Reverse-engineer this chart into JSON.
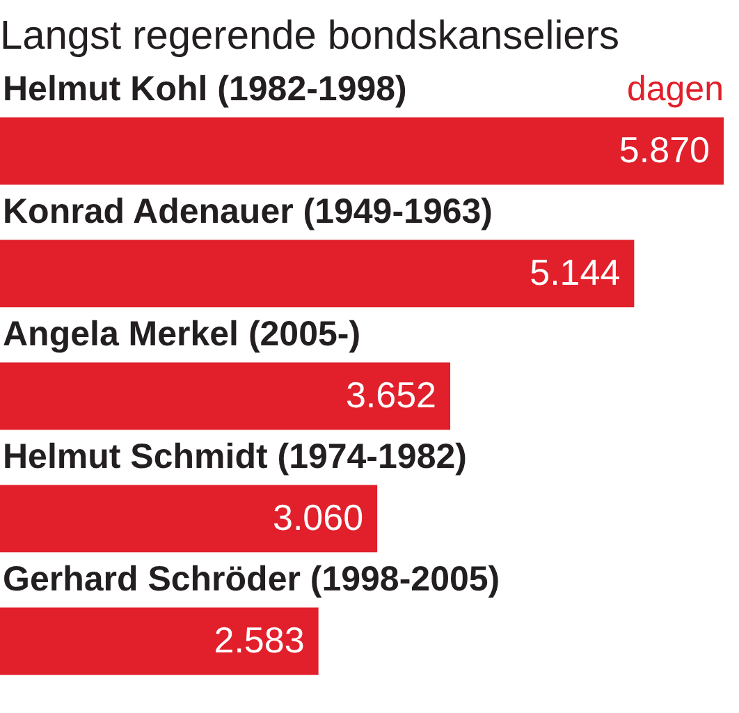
{
  "chart_data": {
    "type": "bar",
    "orientation": "horizontal",
    "title": "Langst regerende bondskanseliers",
    "categories": [
      "Helmut Kohl (1982-1998)",
      "Konrad Adenauer (1949-1963)",
      "Angela Merkel (2005-)",
      "Helmut Schmidt (1974-1982)",
      "Gerhard Schröder (1998-2005)"
    ],
    "values": [
      5870,
      5144,
      3652,
      3060,
      2583
    ],
    "value_labels": [
      "5.870",
      "5.144",
      "3.652",
      "3.060",
      "2.583"
    ],
    "color": "#e1202b",
    "annotations": [
      "dagen"
    ]
  }
}
